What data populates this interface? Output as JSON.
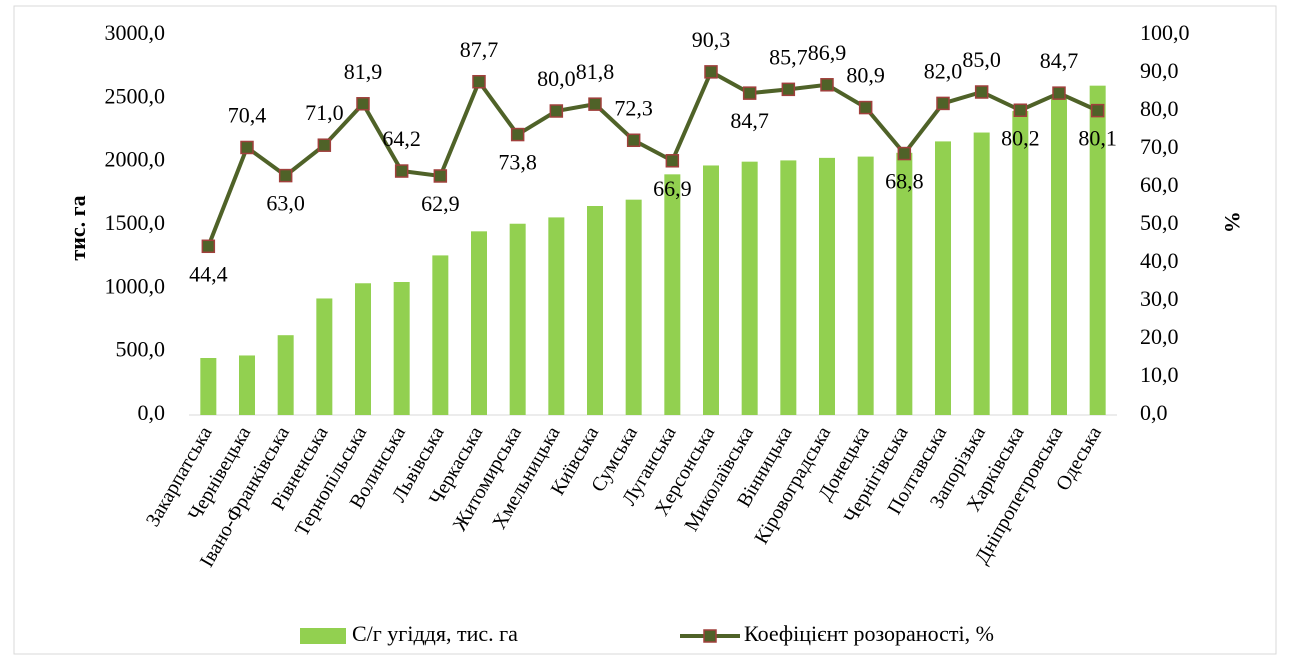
{
  "chart_data": {
    "type": "bar",
    "categories": [
      "Закарпатська",
      "Чернівецька",
      "Івано-Франківська",
      "Рівненська",
      "Тернопільська",
      "Волинська",
      "Львівська",
      "Черкаська",
      "Житомирська",
      "Хмельницька",
      "Київська",
      "Сумська",
      "Луганська",
      "Херсонська",
      "Миколаївська",
      "Вінницька",
      "Кіровоградська",
      "Донецька",
      "Чернігівська",
      "Полтавська",
      "Запорізька",
      "Харківська",
      "Дніпропетровська",
      "Одеська"
    ],
    "series": [
      {
        "name": "С/г угіддя, тис. га",
        "color": "#92d050",
        "values": [
          450,
          470,
          630,
          920,
          1040,
          1050,
          1260,
          1450,
          1510,
          1560,
          1650,
          1700,
          1900,
          1970,
          2000,
          2010,
          2030,
          2040,
          2070,
          2160,
          2230,
          2400,
          2530,
          2600
        ]
      },
      {
        "name": "Коефіцієнт розораності, %",
        "color": "#4f6228",
        "marker_edge_color": "#a0403c",
        "axis": "y2",
        "values": [
          44.4,
          70.4,
          63.0,
          71.0,
          81.9,
          64.2,
          62.9,
          87.7,
          73.8,
          80.0,
          81.8,
          72.3,
          66.9,
          90.3,
          84.7,
          85.7,
          86.9,
          80.9,
          68.8,
          82.0,
          85.0,
          80.2,
          84.7,
          80.1
        ],
        "value_labels": [
          "44,4",
          "70,4",
          "63,0",
          "71,0",
          "81,9",
          "64,2",
          "62,9",
          "87,7",
          "73,8",
          "80,0",
          "81,8",
          "72,3",
          "66,9",
          "90,3",
          "84,7",
          "85,7",
          "86,9",
          "80,9",
          "68,8",
          "82,0",
          "85,0",
          "80,2",
          "84,7",
          "80,1"
        ]
      }
    ],
    "ylabel": "тис. га",
    "y2label": "%",
    "ylim": [
      0,
      3000
    ],
    "yticks": [
      {
        "value": 0,
        "label": "0,0"
      },
      {
        "value": 500,
        "label": "500,0"
      },
      {
        "value": 1000,
        "label": "1000,0"
      },
      {
        "value": 1500,
        "label": "1500,0"
      },
      {
        "value": 2000,
        "label": "2000,0"
      },
      {
        "value": 2500,
        "label": "2500,0"
      },
      {
        "value": 3000,
        "label": "3000,0"
      }
    ],
    "y2lim": [
      0,
      100
    ],
    "y2ticks": [
      {
        "value": 0,
        "label": "0,0"
      },
      {
        "value": 10,
        "label": "10,0"
      },
      {
        "value": 20,
        "label": "20,0"
      },
      {
        "value": 30,
        "label": "30,0"
      },
      {
        "value": 40,
        "label": "40,0"
      },
      {
        "value": 50,
        "label": "50,0"
      },
      {
        "value": 60,
        "label": "60,0"
      },
      {
        "value": 70,
        "label": "70,0"
      },
      {
        "value": 80,
        "label": "80,0"
      },
      {
        "value": 90,
        "label": "90,0"
      },
      {
        "value": 100,
        "label": "100,0"
      }
    ],
    "legend": "bottom"
  }
}
